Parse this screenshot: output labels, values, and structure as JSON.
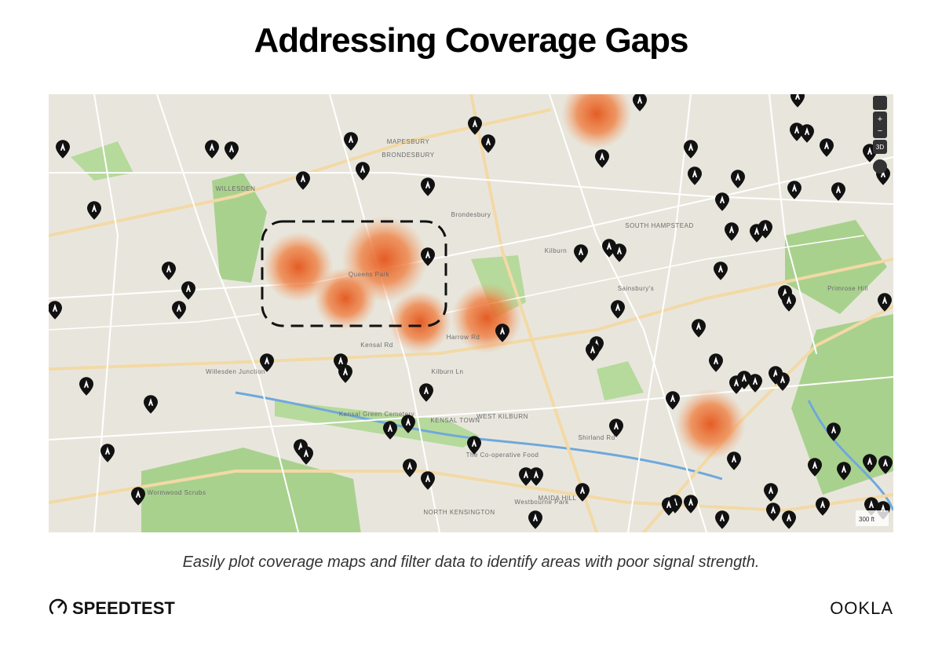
{
  "header": {
    "title": "Addressing Coverage Gaps"
  },
  "map": {
    "labels": [
      "WILLESDEN",
      "MAPESBURY",
      "BRONDESBURY",
      "Kilburn",
      "SOUTH HAMPSTEAD",
      "Primrose Hill",
      "Sainsbury's",
      "Kensal Rd",
      "Harrow Rd",
      "Kilburn Ln",
      "KENSAL TOWN",
      "WEST KILBURN",
      "MAIDA HILL",
      "NORTH KENSINGTON",
      "Kensal Green Cemetery",
      "Willesden Junction",
      "Wormwood Scrubs",
      "The Co-operative Food",
      "Westbourne Park",
      "Shirland Rd",
      "Queens Park",
      "Brondesbury"
    ],
    "controls": [
      "+",
      "−",
      "3D"
    ],
    "scale": "300 ft"
  },
  "caption": "Easily plot coverage maps and filter data to identify areas with poor signal strength.",
  "footer": {
    "left_logo": "SPEEDTEST",
    "right_logo": "OOKLA"
  }
}
